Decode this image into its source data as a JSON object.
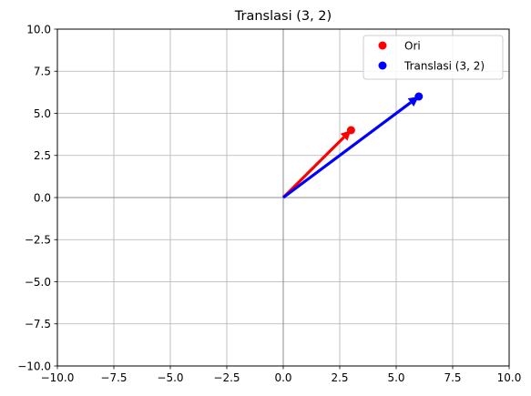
{
  "chart_data": {
    "type": "scatter",
    "title": "Translasi (3, 2)",
    "xlabel": "",
    "ylabel": "",
    "xlim": [
      -10,
      10
    ],
    "ylim": [
      -10,
      10
    ],
    "xticks": [
      -10,
      -7.5,
      -5,
      -2.5,
      0,
      2.5,
      5,
      7.5,
      10
    ],
    "yticks": [
      -10,
      -7.5,
      -5,
      -2.5,
      0,
      2.5,
      5,
      7.5,
      10
    ],
    "xtick_labels": [
      "−10.0",
      "−7.5",
      "−5.0",
      "−2.5",
      "0.0",
      "2.5",
      "5.0",
      "7.5",
      "10.0"
    ],
    "ytick_labels": [
      "−10.0",
      "−7.5",
      "−5.0",
      "−2.5",
      "0.0",
      "2.5",
      "5.0",
      "7.5",
      "10.0"
    ],
    "grid": true,
    "legend_position": "top-right",
    "series": [
      {
        "name": "Ori",
        "color": "#ff0000",
        "points": [
          {
            "x": 3,
            "y": 4
          }
        ],
        "vector_from": {
          "x": 0,
          "y": 0
        }
      },
      {
        "name": "Translasi (3, 2)",
        "color": "#0000ff",
        "points": [
          {
            "x": 6,
            "y": 6
          }
        ],
        "vector_from": {
          "x": 0,
          "y": 0
        }
      }
    ]
  }
}
